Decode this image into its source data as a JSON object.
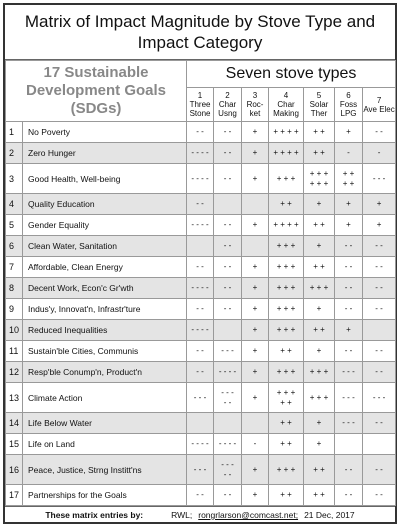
{
  "title": "Matrix of Impact Magnitude by Stove Type and Impact Category",
  "table": {
    "goals_header": "17 Sustainable Development Goals (SDGs)",
    "stoves_header": "Seven stove types",
    "columns": [
      {
        "num": "1",
        "name": "Three Stone"
      },
      {
        "num": "2",
        "name": "Char Usng"
      },
      {
        "num": "3",
        "name": "Roc-ket"
      },
      {
        "num": "4",
        "name": "Char Making"
      },
      {
        "num": "5",
        "name": "Solar Ther"
      },
      {
        "num": "6",
        "name": "Foss LPG"
      },
      {
        "num": "7",
        "name": "Ave Elec"
      }
    ],
    "rows": [
      {
        "num": "1",
        "goal": "No Poverty",
        "cells": [
          "- -",
          "- -",
          "+",
          "+ + + +",
          "+ +",
          "+",
          "- -"
        ]
      },
      {
        "num": "2",
        "goal": "Zero Hunger",
        "cells": [
          "- - - -",
          "- -",
          "+",
          "+ + + +",
          "+ +",
          "-",
          "-"
        ]
      },
      {
        "num": "3",
        "goal": "Good Health, Well-being",
        "cells": [
          "- - - -",
          "- -",
          "+",
          "+ + +",
          "+ + +\n+ + +",
          "+ +\n+ +",
          "- - -"
        ]
      },
      {
        "num": "4",
        "goal": "Quality Education",
        "cells": [
          "- -",
          "",
          "",
          "+ +",
          "+",
          "+",
          "+"
        ]
      },
      {
        "num": "5",
        "goal": "Gender Equality",
        "cells": [
          "- - - -",
          "- -",
          "+",
          "+ + + +",
          "+ +",
          "+",
          "+"
        ]
      },
      {
        "num": "6",
        "goal": "Clean Water, Sanitation",
        "cells": [
          "",
          "- -",
          "",
          "+ + +",
          "+",
          "- -",
          "- -"
        ]
      },
      {
        "num": "7",
        "goal": "Affordable, Clean Energy",
        "cells": [
          "- -",
          "- -",
          "+",
          "+ + +",
          "+ +",
          "- -",
          "- -"
        ]
      },
      {
        "num": "8",
        "goal": "Decent Work, Econ'c Gr'wth",
        "cells": [
          "- - - -",
          "- -",
          "+",
          "+ + +",
          "+ + +",
          "- -",
          "- -"
        ]
      },
      {
        "num": "9",
        "goal": "Indus'y, Innovat'n, Infrastr'ture",
        "cells": [
          "- -",
          "- -",
          "+",
          "+ + +",
          "+",
          "- -",
          "- -"
        ]
      },
      {
        "num": "10",
        "goal": "Reduced Inequalities",
        "cells": [
          "- - - -",
          "",
          "+",
          "+ + +",
          "+ +",
          "+",
          ""
        ]
      },
      {
        "num": "11",
        "goal": "Sustain'ble Cities, Communis",
        "cells": [
          "- -",
          "- - -",
          "+",
          "+ +",
          "+",
          "- -",
          "- -"
        ]
      },
      {
        "num": "12",
        "goal": "Resp'ble Conump'n, Product'n",
        "cells": [
          "- -",
          "- - - -",
          "+",
          "+ + +",
          "+ + +",
          "- - -",
          "- -"
        ]
      },
      {
        "num": "13",
        "goal": "Climate Action",
        "cells": [
          "- - -",
          "- - -\n- -",
          "+",
          "+ + +\n+ +",
          "+ + +",
          "- - -",
          "- - -"
        ]
      },
      {
        "num": "14",
        "goal": "Life Below Water",
        "cells": [
          "",
          "",
          "",
          "+ +",
          "+",
          "- - -",
          "- -"
        ]
      },
      {
        "num": "15",
        "goal": "Life on Land",
        "cells": [
          "- - - -",
          "- - - -",
          "-",
          "+ +",
          "+",
          "",
          ""
        ]
      },
      {
        "num": "16",
        "goal": "Peace, Justice, Strng Institt'ns",
        "cells": [
          "- - -",
          "- - -\n- -",
          "+",
          "+ + +",
          "+ +",
          "- -",
          "- -"
        ]
      },
      {
        "num": "17",
        "goal": "Partnerships for the Goals",
        "cells": [
          "- -",
          "- -",
          "+",
          "+ +",
          "+ +",
          "- -",
          "- -"
        ]
      }
    ]
  },
  "footer": {
    "label": "These matrix entries by:",
    "author": "RWL;",
    "email": "rongrlarson@comcast.net;",
    "date": "21 Dec, 2017"
  }
}
